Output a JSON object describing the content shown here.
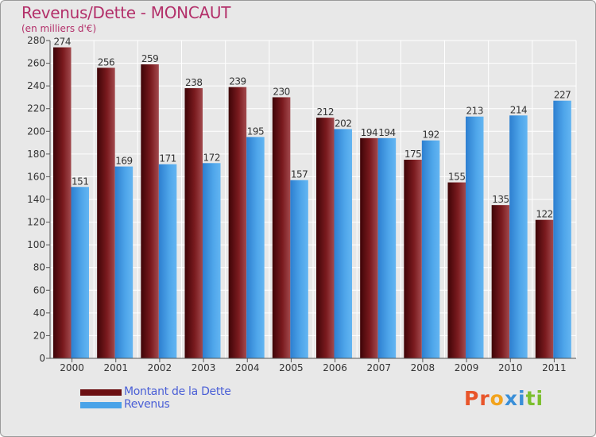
{
  "title": "Revenus/Dette - MONCAUT",
  "subtitle": "(en milliers d'€)",
  "legend": {
    "items": [
      {
        "label": "Montant de la Dette",
        "color": "#6b0f12"
      },
      {
        "label": "Revenus",
        "color": "#4aa3e8"
      }
    ]
  },
  "logo": {
    "text": "Proxiti",
    "letters": [
      "P",
      "r",
      "o",
      "x",
      "i",
      "t",
      "i"
    ],
    "colors": [
      "#e8552a",
      "#e8552a",
      "#f2a31d",
      "#3a8fd8",
      "#3a8fd8",
      "#7cbf2e",
      "#7cbf2e"
    ]
  },
  "chart_data": {
    "type": "bar",
    "title": "Revenus/Dette - MONCAUT",
    "subtitle": "(en milliers d'€)",
    "categories": [
      "2000",
      "2001",
      "2002",
      "2003",
      "2004",
      "2005",
      "2006",
      "2007",
      "2008",
      "2009",
      "2010",
      "2011"
    ],
    "series": [
      {
        "name": "Montant de la Dette",
        "color": "#6b0f12",
        "values": [
          274,
          256,
          259,
          238,
          239,
          230,
          212,
          194,
          175,
          155,
          135,
          122
        ]
      },
      {
        "name": "Revenus",
        "color": "#4aa3e8",
        "values": [
          151,
          169,
          171,
          172,
          195,
          157,
          202,
          194,
          192,
          213,
          214,
          227
        ]
      }
    ],
    "ylim": [
      0,
      280
    ],
    "yticks": [
      0,
      20,
      40,
      60,
      80,
      100,
      120,
      140,
      160,
      180,
      200,
      220,
      240,
      260,
      280
    ],
    "grid": true,
    "legend_position": "bottom-left",
    "data_labels": true
  }
}
